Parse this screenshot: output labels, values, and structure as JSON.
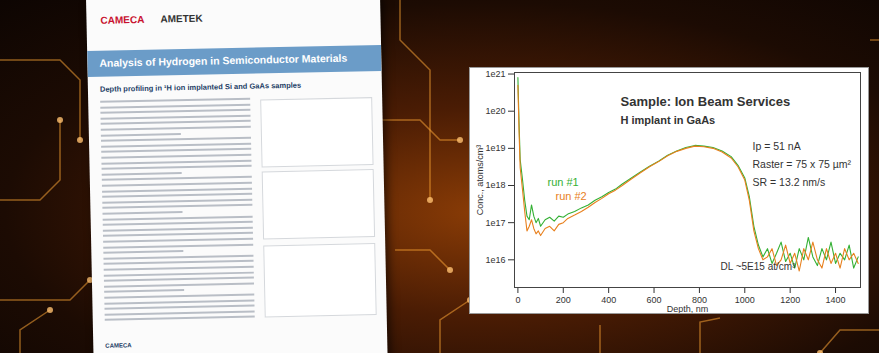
{
  "chart_data": {
    "type": "line",
    "log": "y",
    "xlabel": "Depth, nm",
    "ylabel": "Conc., atoms/cm³",
    "xlim": [
      -15,
      1510
    ],
    "xticks": [
      0,
      200,
      400,
      600,
      800,
      1000,
      1200,
      1400
    ],
    "ylim": [
      1800000000000000.0,
      1.1e+21
    ],
    "yticks": [
      {
        "value": 1e+16,
        "label": "1e16"
      },
      {
        "value": 1e+17,
        "label": "1e17"
      },
      {
        "value": 1e+18,
        "label": "1e18"
      },
      {
        "value": 1e+19,
        "label": "1e19"
      },
      {
        "value": 1e+20,
        "label": "1e20"
      },
      {
        "value": 1e+21,
        "label": "1e21"
      }
    ],
    "annotations": [
      "Sample: Ion Beam Services",
      "H implant in GaAs",
      "Ip = 51 nA",
      "Raster = 75 x 75 µm²",
      "SR = 13.2 nm/s",
      "DL ~5E15 at/cm³"
    ],
    "x": [
      0,
      5,
      10,
      20,
      30,
      40,
      50,
      60,
      70,
      80,
      90,
      100,
      120,
      140,
      160,
      180,
      200,
      220,
      250,
      280,
      310,
      340,
      370,
      400,
      430,
      460,
      500,
      540,
      580,
      620,
      660,
      700,
      740,
      780,
      820,
      860,
      900,
      940,
      970,
      1000,
      1020,
      1040,
      1060,
      1080,
      1100,
      1120,
      1140,
      1160,
      1180,
      1200,
      1220,
      1240,
      1260,
      1280,
      1300,
      1320,
      1340,
      1360,
      1380,
      1400,
      1420,
      1440,
      1460,
      1480,
      1500
    ],
    "series": [
      {
        "name": "run #1",
        "color": "#34b034",
        "values": [
          8e+20,
          5e+19,
          5e+18,
          1.5e+18,
          4e+17,
          1.5e+17,
          1.2e+17,
          3e+17,
          1.5e+17,
          1e+17,
          1.3e+17,
          8e+16,
          1.2e+17,
          1.4e+17,
          1.1e+17,
          1.5e+17,
          1.4e+17,
          1.7e+17,
          2e+17,
          2.5e+17,
          3e+17,
          4e+17,
          5e+17,
          6.5e+17,
          8e+17,
          1.1e+18,
          1.6e+18,
          2.3e+18,
          3.3e+18,
          4.5e+18,
          6.5e+18,
          8.5e+18,
          1.05e+19,
          1.2e+19,
          1.15e+19,
          1.05e+19,
          8.5e+18,
          6e+18,
          3.5e+18,
          1.6e+18,
          5e+17,
          8e+16,
          2.5e+16,
          1.2e+16,
          2e+16,
          8000000000000000.0,
          1.5e+16,
          3e+16,
          9000000000000000.0,
          1.5e+16,
          6000000000000000.0,
          2e+16,
          1e+16,
          4e+16,
          1.2e+16,
          7000000000000000.0,
          2e+16,
          1e+16,
          3e+16,
          8000000000000000.0,
          1.5e+16,
          1e+16,
          2.5e+16,
          6000000000000000.0,
          1.2e+16
        ]
      },
      {
        "name": "run #2",
        "color": "#e8801e",
        "values": [
          5e+20,
          3e+19,
          3e+18,
          8e+17,
          2e+17,
          6e+16,
          8e+16,
          1.2e+17,
          7e+16,
          5e+16,
          6e+16,
          4.5e+16,
          7e+16,
          8e+16,
          6e+16,
          9e+16,
          1e+17,
          1.3e+17,
          1.6e+17,
          2e+17,
          2.6e+17,
          3.5e+17,
          4.5e+17,
          6e+17,
          7.5e+17,
          1e+18,
          1.5e+18,
          2.2e+18,
          3.2e+18,
          4.4e+18,
          6.3e+18,
          8.3e+18,
          1e+19,
          1.15e+19,
          1.1e+19,
          1e+19,
          8e+18,
          5.5e+18,
          3.2e+18,
          1.4e+18,
          4e+17,
          6e+16,
          2e+16,
          1e+16,
          1.2e+16,
          2e+16,
          7000000000000000.0,
          1e+16,
          2.5e+16,
          8000000000000000.0,
          1.5e+16,
          5000000000000000.0,
          2e+16,
          1e+16,
          3e+16,
          1e+16,
          6000000000000000.0,
          2e+16,
          8000000000000000.0,
          1.5e+16,
          6000000000000000.0,
          2e+16,
          1e+16,
          1.5e+16,
          8000000000000000.0
        ]
      }
    ]
  },
  "brochure": {
    "logo": "CAMECA",
    "brand": "AMETEK",
    "title": "Analysis of Hydrogen in Semiconductor Materials",
    "subtitle": "Depth profiling in ¹H ion implanted Si and GaAs samples",
    "footer": "CAMECA"
  }
}
